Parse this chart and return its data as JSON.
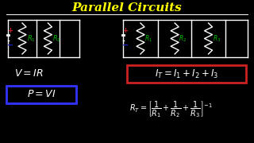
{
  "title": "Parallel Circuits",
  "title_color": "#FFFF00",
  "bg_color": "#000000",
  "white": "#FFFFFF",
  "green": "#00BB00",
  "red": "#CC2222",
  "blue": "#2222CC",
  "blue_box_color": "#3333FF",
  "red_box_color": "#CC2222"
}
